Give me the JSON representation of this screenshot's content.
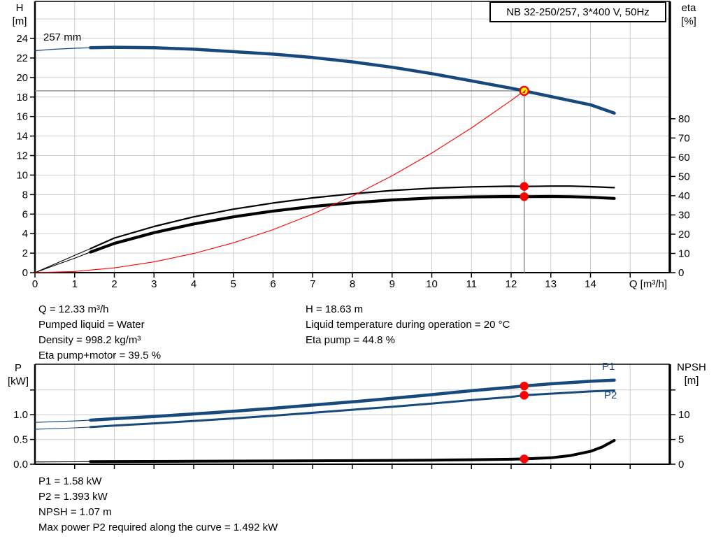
{
  "title_box": {
    "label": "NB 32-250/257, 3*400 V, 50Hz"
  },
  "impeller_label": "257 mm",
  "axis_titles": {
    "head": "H",
    "head_unit": "[m]",
    "eta": "eta",
    "eta_unit": "[%]",
    "flow": "Q [m³/h]",
    "power": "P",
    "power_unit": "[kW]",
    "npsh": "NPSH",
    "npsh_unit": "[m]"
  },
  "series_labels": {
    "p1": "P1",
    "p2": "P2"
  },
  "info_top_left": [
    "Q = 12.33 m³/h",
    "Pumped liquid = Water",
    "Density = 998.2 kg/m³",
    "Eta pump+motor = 39.5 %"
  ],
  "info_top_right": [
    "H = 18.63 m",
    "Liquid temperature during operation = 20 °C",
    "Eta pump = 44.8 %"
  ],
  "info_bottom": [
    "P1 = 1.58 kW",
    "P2 = 1.393 kW",
    "NPSH = 1.07 m",
    "Max power P2 required along the curve = 1.492 kW"
  ],
  "colors": {
    "curve_blue": "#17497d",
    "red": "#ff0000",
    "yellow": "#ffff00",
    "grid": "#cdcdcd",
    "crosshair": "#8a8a8a",
    "axis": "#000000",
    "text": "#000000"
  },
  "chart_data": [
    {
      "type": "line",
      "title": "NB 32-250/257, 3*400 V, 50Hz",
      "xlabel": "Q [m³/h]",
      "ylabel_left": "H [m]",
      "ylabel_right": "eta [%]",
      "xlim": [
        0,
        16
      ],
      "ylim_left": [
        0,
        27.8
      ],
      "ylim_right": [
        0,
        141
      ],
      "grid_x": [
        1,
        2,
        3,
        4,
        5,
        6,
        7,
        8,
        9,
        10,
        11,
        12,
        13,
        14,
        15
      ],
      "grid_y": [
        2,
        4,
        6,
        8,
        10,
        12,
        14,
        16,
        18,
        20,
        22,
        24,
        26
      ],
      "x_ticks": [
        {
          "v": 0,
          "t": "0"
        },
        {
          "v": 1,
          "t": "1"
        },
        {
          "v": 2,
          "t": "2"
        },
        {
          "v": 3,
          "t": "3"
        },
        {
          "v": 4,
          "t": "4"
        },
        {
          "v": 5,
          "t": "5"
        },
        {
          "v": 6,
          "t": "6"
        },
        {
          "v": 7,
          "t": "7"
        },
        {
          "v": 8,
          "t": "8"
        },
        {
          "v": 9,
          "t": "9"
        },
        {
          "v": 10,
          "t": "10"
        },
        {
          "v": 11,
          "t": "11"
        },
        {
          "v": 12,
          "t": "12"
        },
        {
          "v": 13,
          "t": "13"
        },
        {
          "v": 14,
          "t": "14"
        },
        {
          "v": 15,
          "t": null
        }
      ],
      "y_ticks_left": [
        {
          "v": 0,
          "t": "0"
        },
        {
          "v": 2,
          "t": "2"
        },
        {
          "v": 4,
          "t": "4"
        },
        {
          "v": 6,
          "t": "6"
        },
        {
          "v": 8,
          "t": "8"
        },
        {
          "v": 10,
          "t": "10"
        },
        {
          "v": 12,
          "t": "12"
        },
        {
          "v": 14,
          "t": "14"
        },
        {
          "v": 16,
          "t": "16"
        },
        {
          "v": 18,
          "t": "18"
        },
        {
          "v": 20,
          "t": "20"
        },
        {
          "v": 22,
          "t": "22"
        },
        {
          "v": 24,
          "t": "24"
        }
      ],
      "y_ticks_right": [
        {
          "v": 0,
          "t": "0"
        },
        {
          "v": 10,
          "t": "10"
        },
        {
          "v": 20,
          "t": "20"
        },
        {
          "v": 30,
          "t": "30"
        },
        {
          "v": 40,
          "t": "40"
        },
        {
          "v": 50,
          "t": "50"
        },
        {
          "v": 60,
          "t": "60"
        },
        {
          "v": 70,
          "t": "70"
        },
        {
          "v": 80,
          "t": "80"
        }
      ],
      "series": [
        {
          "name": "head-curve-257mm",
          "axis": "left",
          "color": "#17497d",
          "width": 4.5,
          "thin_width": 1.2,
          "thin_until": 1.4,
          "points": [
            [
              0,
              22.75
            ],
            [
              0.5,
              22.9
            ],
            [
              1,
              23.0
            ],
            [
              1.4,
              23.05
            ],
            [
              2,
              23.1
            ],
            [
              3,
              23.05
            ],
            [
              4,
              22.9
            ],
            [
              5,
              22.65
            ],
            [
              6,
              22.4
            ],
            [
              7,
              22.05
            ],
            [
              8,
              21.6
            ],
            [
              9,
              21.05
            ],
            [
              10,
              20.4
            ],
            [
              11,
              19.65
            ],
            [
              12,
              18.9
            ],
            [
              12.33,
              18.63
            ],
            [
              13,
              18.05
            ],
            [
              14,
              17.2
            ],
            [
              14.6,
              16.35
            ]
          ]
        },
        {
          "name": "eta-pump",
          "axis": "right",
          "color": "#000000",
          "width": 2.2,
          "thin_width": 1.1,
          "thin_until": 1.4,
          "points": [
            [
              0,
              0
            ],
            [
              0.5,
              4.5
            ],
            [
              1,
              9
            ],
            [
              1.4,
              12.5
            ],
            [
              2,
              18
            ],
            [
              3,
              24
            ],
            [
              4,
              29
            ],
            [
              5,
              33
            ],
            [
              6,
              36.2
            ],
            [
              7,
              38.9
            ],
            [
              8,
              41
            ],
            [
              9,
              42.7
            ],
            [
              10,
              43.9
            ],
            [
              11,
              44.6
            ],
            [
              12,
              44.9
            ],
            [
              12.33,
              44.8
            ],
            [
              13,
              45.0
            ],
            [
              13.5,
              45.0
            ],
            [
              14,
              44.7
            ],
            [
              14.6,
              44.2
            ]
          ]
        },
        {
          "name": "eta-pump-motor",
          "axis": "right",
          "color": "#000000",
          "width": 4.2,
          "thin_width": 1.1,
          "thin_until": 1.4,
          "points": [
            [
              0,
              0
            ],
            [
              0.5,
              3.8
            ],
            [
              1,
              7.5
            ],
            [
              1.4,
              10.7
            ],
            [
              2,
              15.2
            ],
            [
              3,
              20.8
            ],
            [
              4,
              25.3
            ],
            [
              5,
              29
            ],
            [
              6,
              32
            ],
            [
              7,
              34.4
            ],
            [
              8,
              36.3
            ],
            [
              9,
              37.8
            ],
            [
              10,
              38.8
            ],
            [
              11,
              39.4
            ],
            [
              12,
              39.6
            ],
            [
              12.33,
              39.5
            ],
            [
              13,
              39.6
            ],
            [
              13.5,
              39.5
            ],
            [
              14,
              39.2
            ],
            [
              14.6,
              38.6
            ]
          ]
        },
        {
          "name": "system-curve",
          "axis": "left",
          "color": "#ff0000",
          "width": 1.1,
          "points": [
            [
              0,
              0
            ],
            [
              1,
              0.12
            ],
            [
              2,
              0.49
            ],
            [
              3,
              1.1
            ],
            [
              4,
              1.96
            ],
            [
              5,
              3.06
            ],
            [
              6,
              4.41
            ],
            [
              7,
              6.01
            ],
            [
              8,
              7.84
            ],
            [
              9,
              9.93
            ],
            [
              10,
              12.25
            ],
            [
              11,
              14.83
            ],
            [
              12,
              17.65
            ],
            [
              12.33,
              18.63
            ]
          ]
        }
      ],
      "dots": [
        {
          "axis": "right",
          "q": 12.33,
          "v": 44.8
        },
        {
          "axis": "right",
          "q": 12.33,
          "v": 39.5
        }
      ],
      "duty_point": {
        "q": 12.33,
        "h": 18.63
      }
    },
    {
      "type": "line",
      "ylabel_left": "P [kW]",
      "ylabel_right": "NPSH [m]",
      "xlim": [
        0,
        16
      ],
      "ylim_left": [
        0,
        2.02
      ],
      "ylim_right": [
        0,
        20.2
      ],
      "grid_x": [
        1,
        2,
        3,
        4,
        5,
        6,
        7,
        8,
        9,
        10,
        11,
        12,
        13,
        14,
        15
      ],
      "grid_y": [
        0.5,
        1.0,
        1.5
      ],
      "x_ticks": [
        {
          "v": 1,
          "t": null
        },
        {
          "v": 2,
          "t": null
        },
        {
          "v": 3,
          "t": null
        },
        {
          "v": 4,
          "t": null
        },
        {
          "v": 5,
          "t": null
        },
        {
          "v": 6,
          "t": null
        },
        {
          "v": 7,
          "t": null
        },
        {
          "v": 8,
          "t": null
        },
        {
          "v": 9,
          "t": null
        },
        {
          "v": 10,
          "t": null
        },
        {
          "v": 11,
          "t": null
        },
        {
          "v": 12,
          "t": null
        },
        {
          "v": 13,
          "t": null
        },
        {
          "v": 14,
          "t": null
        },
        {
          "v": 15,
          "t": null
        }
      ],
      "y_ticks_left": [
        {
          "v": 0,
          "t": "0.0"
        },
        {
          "v": 0.5,
          "t": "0.5"
        },
        {
          "v": 1,
          "t": "1.0"
        },
        {
          "v": 1.5,
          "t": null
        }
      ],
      "y_ticks_right": [
        {
          "v": 0,
          "t": "0"
        },
        {
          "v": 5,
          "t": "5"
        },
        {
          "v": 10,
          "t": "10"
        },
        {
          "v": 15,
          "t": null
        }
      ],
      "series": [
        {
          "name": "p1-curve",
          "axis": "left",
          "color": "#17497d",
          "width": 4.5,
          "thin_width": 1.2,
          "thin_until": 1.4,
          "points": [
            [
              0,
              0.845
            ],
            [
              1,
              0.875
            ],
            [
              1.4,
              0.89
            ],
            [
              2,
              0.92
            ],
            [
              3,
              0.965
            ],
            [
              4,
              1.015
            ],
            [
              5,
              1.07
            ],
            [
              6,
              1.13
            ],
            [
              7,
              1.195
            ],
            [
              8,
              1.26
            ],
            [
              9,
              1.33
            ],
            [
              10,
              1.405
            ],
            [
              11,
              1.485
            ],
            [
              12,
              1.555
            ],
            [
              12.33,
              1.58
            ],
            [
              13,
              1.625
            ],
            [
              14,
              1.675
            ],
            [
              14.6,
              1.7
            ]
          ]
        },
        {
          "name": "p2-curve",
          "axis": "left",
          "color": "#17497d",
          "width": 3,
          "thin_width": 1.1,
          "thin_until": 1.4,
          "points": [
            [
              0,
              0.705
            ],
            [
              1,
              0.735
            ],
            [
              1.4,
              0.75
            ],
            [
              2,
              0.78
            ],
            [
              3,
              0.825
            ],
            [
              4,
              0.875
            ],
            [
              5,
              0.925
            ],
            [
              6,
              0.98
            ],
            [
              7,
              1.04
            ],
            [
              8,
              1.1
            ],
            [
              9,
              1.16
            ],
            [
              10,
              1.225
            ],
            [
              11,
              1.295
            ],
            [
              12,
              1.36
            ],
            [
              12.33,
              1.393
            ],
            [
              13,
              1.425
            ],
            [
              14,
              1.47
            ],
            [
              14.6,
              1.49
            ]
          ]
        },
        {
          "name": "npsh-curve",
          "axis": "right",
          "color": "#000000",
          "width": 4,
          "thin_width": 1.1,
          "thin_until": 1.4,
          "points": [
            [
              0,
              0.45
            ],
            [
              1,
              0.5
            ],
            [
              1.4,
              0.52
            ],
            [
              2,
              0.55
            ],
            [
              4,
              0.6
            ],
            [
              6,
              0.65
            ],
            [
              8,
              0.72
            ],
            [
              9,
              0.76
            ],
            [
              10,
              0.82
            ],
            [
              11,
              0.9
            ],
            [
              12,
              1.0
            ],
            [
              12.33,
              1.07
            ],
            [
              13,
              1.3
            ],
            [
              13.5,
              1.75
            ],
            [
              14,
              2.6
            ],
            [
              14.3,
              3.5
            ],
            [
              14.6,
              4.8
            ]
          ]
        }
      ],
      "dots": [
        {
          "axis": "left",
          "q": 12.33,
          "v": 1.58
        },
        {
          "axis": "left",
          "q": 12.33,
          "v": 1.393
        },
        {
          "axis": "right",
          "q": 12.33,
          "v": 1.07
        }
      ]
    }
  ]
}
